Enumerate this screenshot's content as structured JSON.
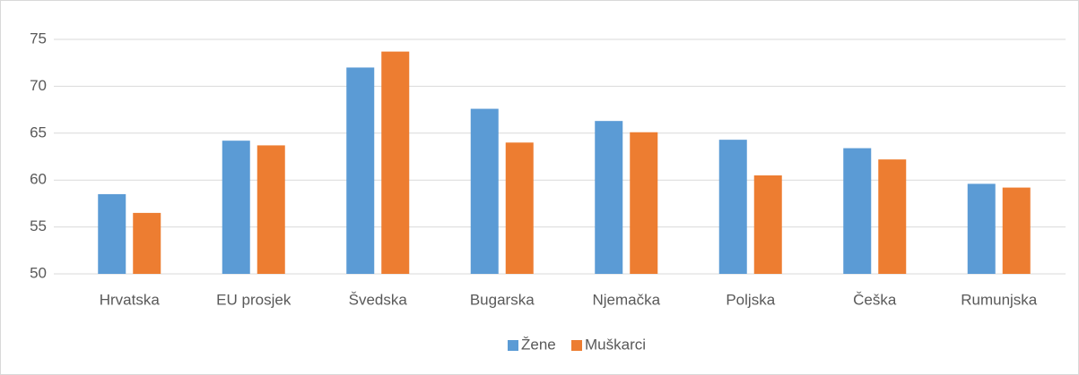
{
  "chart_data": {
    "type": "bar",
    "categories": [
      "Hrvatska",
      "EU prosjek",
      "Švedska",
      "Bugarska",
      "Njemačka",
      "Poljska",
      "Češka",
      "Rumunjska"
    ],
    "series": [
      {
        "name": "Žene",
        "color": "#5b9bd5",
        "values": [
          58.5,
          64.2,
          72.0,
          67.6,
          66.3,
          64.3,
          63.4,
          59.6
        ]
      },
      {
        "name": "Muškarci",
        "color": "#ed7d31",
        "values": [
          56.5,
          63.7,
          73.7,
          64.0,
          65.1,
          60.5,
          62.2,
          59.2
        ]
      }
    ],
    "ylim": [
      50,
      75
    ],
    "yticks": [
      50,
      55,
      60,
      65,
      70,
      75
    ],
    "grid": true,
    "legend": "bottom"
  }
}
